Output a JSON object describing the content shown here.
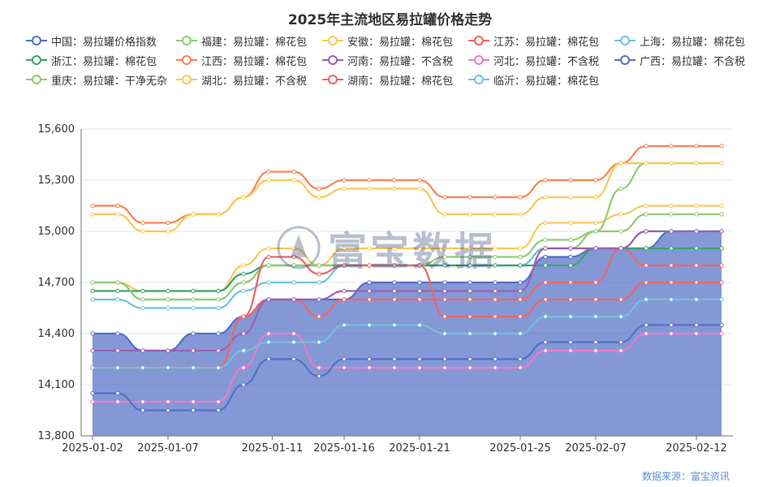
{
  "chart_data": {
    "type": "line",
    "title": "2025年主流地区易拉罐价格走势",
    "categories": [
      "2025-01-02",
      "2025-01-03",
      "2025-01-06",
      "2025-01-07",
      "2025-01-08",
      "2025-01-09",
      "2025-01-10",
      "2025-01-13",
      "2025-01-14",
      "2025-01-15",
      "2025-01-16",
      "2025-01-17",
      "2025-01-20",
      "2025-01-21",
      "2025-01-22",
      "2025-01-23",
      "2025-01-24",
      "2025-01-25",
      "2025-02-05",
      "2025-02-06",
      "2025-02-07",
      "2025-02-08",
      "2025-02-10",
      "2025-02-11",
      "2025-02-12",
      "2025-02-13"
    ],
    "x_tick_labels": [
      "2025-01-02",
      "2025-01-07",
      "2025-01-11",
      "2025-01-16",
      "2025-01-21",
      "2025-01-25",
      "2025-02-07",
      "2025-02-12"
    ],
    "ylim": [
      13800,
      15600
    ],
    "y_ticks": [
      "13,800",
      "14,100",
      "14,400",
      "14,700",
      "15,000",
      "15,300",
      "15,600"
    ],
    "series": [
      {
        "name": "中国：易拉罐价格指数",
        "color": "#5470c6",
        "area": true,
        "values": [
          14400,
          14400,
          14300,
          14300,
          14400,
          14400,
          14500,
          14600,
          14600,
          14600,
          14600,
          14700,
          14700,
          14700,
          14700,
          14700,
          14700,
          14700,
          14850,
          14850,
          14900,
          14900,
          14900,
          15000,
          15000,
          15000
        ]
      },
      {
        "name": "福建：易拉罐：棉花包",
        "color": "#91cc75",
        "values": [
          14700,
          14700,
          14600,
          14600,
          14600,
          14600,
          14700,
          14800,
          14800,
          14800,
          14800,
          14800,
          14800,
          14800,
          14800,
          14800,
          14800,
          14800,
          14900,
          14900,
          15000,
          15000,
          15100,
          15100,
          15100,
          15100
        ]
      },
      {
        "name": "安徽：易拉罐：棉花包",
        "color": "#fac858",
        "values": [
          14700,
          14700,
          14650,
          14650,
          14650,
          14650,
          14800,
          14900,
          14900,
          14800,
          14900,
          14900,
          14900,
          14900,
          14900,
          14900,
          14900,
          14900,
          15050,
          15050,
          15050,
          15100,
          15150,
          15150,
          15150,
          15150
        ]
      },
      {
        "name": "江苏：易拉罐：棉花包",
        "color": "#ee6666",
        "values": [
          14200,
          14200,
          14200,
          14200,
          14200,
          14200,
          14500,
          14600,
          14600,
          14500,
          14600,
          14600,
          14600,
          14600,
          14600,
          14600,
          14600,
          14600,
          14700,
          14700,
          14700,
          14900,
          14800,
          14800,
          14800,
          14800
        ]
      },
      {
        "name": "上海：易拉罐：棉花包",
        "color": "#73c0de",
        "values": [
          14600,
          14600,
          14550,
          14550,
          14550,
          14550,
          14650,
          14700,
          14700,
          14700,
          14800,
          14800,
          14800,
          14800,
          14800,
          14800,
          14800,
          14800,
          14900,
          14900,
          14900,
          14900,
          15000,
          15000,
          15000,
          15000
        ]
      },
      {
        "name": "浙江：易拉罐：棉花包",
        "color": "#3ba272",
        "values": [
          14650,
          14650,
          14650,
          14650,
          14650,
          14650,
          14750,
          14800,
          14800,
          14800,
          14800,
          14800,
          14800,
          14800,
          14800,
          14800,
          14800,
          14800,
          14800,
          14800,
          14900,
          14900,
          14900,
          14900,
          14900,
          14900
        ]
      },
      {
        "name": "江西：易拉罐：棉花包",
        "color": "#fc8452",
        "values": [
          15150,
          15150,
          15050,
          15050,
          15100,
          15100,
          15200,
          15350,
          15350,
          15250,
          15300,
          15300,
          15300,
          15300,
          15200,
          15200,
          15200,
          15200,
          15300,
          15300,
          15300,
          15400,
          15500,
          15500,
          15500,
          15500
        ]
      },
      {
        "name": "河南：易拉罐：不含税",
        "color": "#9a60b4",
        "values": [
          14300,
          14300,
          14300,
          14300,
          14300,
          14300,
          14400,
          14600,
          14600,
          14600,
          14650,
          14650,
          14650,
          14650,
          14650,
          14650,
          14650,
          14650,
          14900,
          14900,
          14900,
          14900,
          15000,
          15000,
          15000,
          15000
        ]
      },
      {
        "name": "河北：易拉罐：不含税",
        "color": "#ea7ccc",
        "values": [
          14000,
          14000,
          14000,
          14000,
          14000,
          14000,
          14200,
          14400,
          14400,
          14200,
          14200,
          14200,
          14200,
          14200,
          14200,
          14200,
          14200,
          14200,
          14300,
          14300,
          14300,
          14300,
          14400,
          14400,
          14400,
          14400
        ]
      },
      {
        "name": "广西：易拉罐：不含税",
        "color": "#5470c6",
        "values": [
          14050,
          14050,
          13950,
          13950,
          13950,
          13950,
          14100,
          14250,
          14250,
          14150,
          14250,
          14250,
          14250,
          14250,
          14250,
          14250,
          14250,
          14250,
          14350,
          14350,
          14350,
          14350,
          14450,
          14450,
          14450,
          14450
        ]
      },
      {
        "name": "重庆：易拉罐：干净无杂",
        "color": "#91cc75",
        "values": [
          14700,
          14700,
          14600,
          14600,
          14600,
          14600,
          14700,
          14800,
          14800,
          14800,
          14800,
          14800,
          14800,
          14800,
          14850,
          14850,
          14850,
          14850,
          14950,
          14950,
          15000,
          15250,
          15400,
          15400,
          15400,
          15400
        ]
      },
      {
        "name": "湖北：易拉罐：不含税",
        "color": "#fac858",
        "values": [
          15100,
          15100,
          15000,
          15000,
          15100,
          15100,
          15200,
          15300,
          15300,
          15200,
          15250,
          15250,
          15250,
          15250,
          15100,
          15100,
          15100,
          15100,
          15200,
          15200,
          15200,
          15400,
          15400,
          15400,
          15400,
          15400
        ]
      },
      {
        "name": "湖南：易拉罐：棉花包",
        "color": "#ee6666",
        "values": [
          14200,
          14200,
          14200,
          14200,
          14200,
          14200,
          14500,
          14850,
          14850,
          14750,
          14800,
          14800,
          14800,
          14800,
          14500,
          14500,
          14500,
          14500,
          14600,
          14600,
          14600,
          14600,
          14700,
          14700,
          14700,
          14700
        ]
      },
      {
        "name": "临沂：易拉罐：棉花包",
        "color": "#73c0de",
        "values": [
          14200,
          14200,
          14200,
          14200,
          14200,
          14200,
          14300,
          14350,
          14350,
          14350,
          14450,
          14450,
          14450,
          14450,
          14400,
          14400,
          14400,
          14400,
          14500,
          14500,
          14500,
          14500,
          14600,
          14600,
          14600,
          14600
        ]
      }
    ]
  },
  "source_note": "数据来源：富宝资讯",
  "watermark_text": "富宝数据"
}
